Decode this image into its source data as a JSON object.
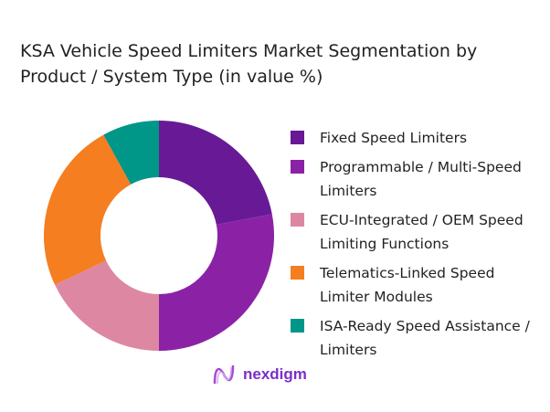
{
  "chart_data": {
    "type": "pie",
    "donut": true,
    "title": "KSA Vehicle Speed Limiters Market Segmentation by Product / System Type (in value %)",
    "categories": [
      "Fixed Speed Limiters",
      "Programmable / Multi-Speed Limiters",
      "ECU-Integrated / OEM Speed Limiting Functions",
      "Telematics-Linked Speed Limiter Modules",
      "ISA-Ready Speed Assistance / Limiters"
    ],
    "values": [
      22,
      28,
      18,
      24,
      8
    ],
    "colors": [
      "#681995",
      "#8b22a6",
      "#dd87a2",
      "#f47e20",
      "#009688"
    ],
    "legend_position": "right"
  },
  "logo": {
    "text": "nexdigm",
    "color": "#7b2fc9"
  }
}
